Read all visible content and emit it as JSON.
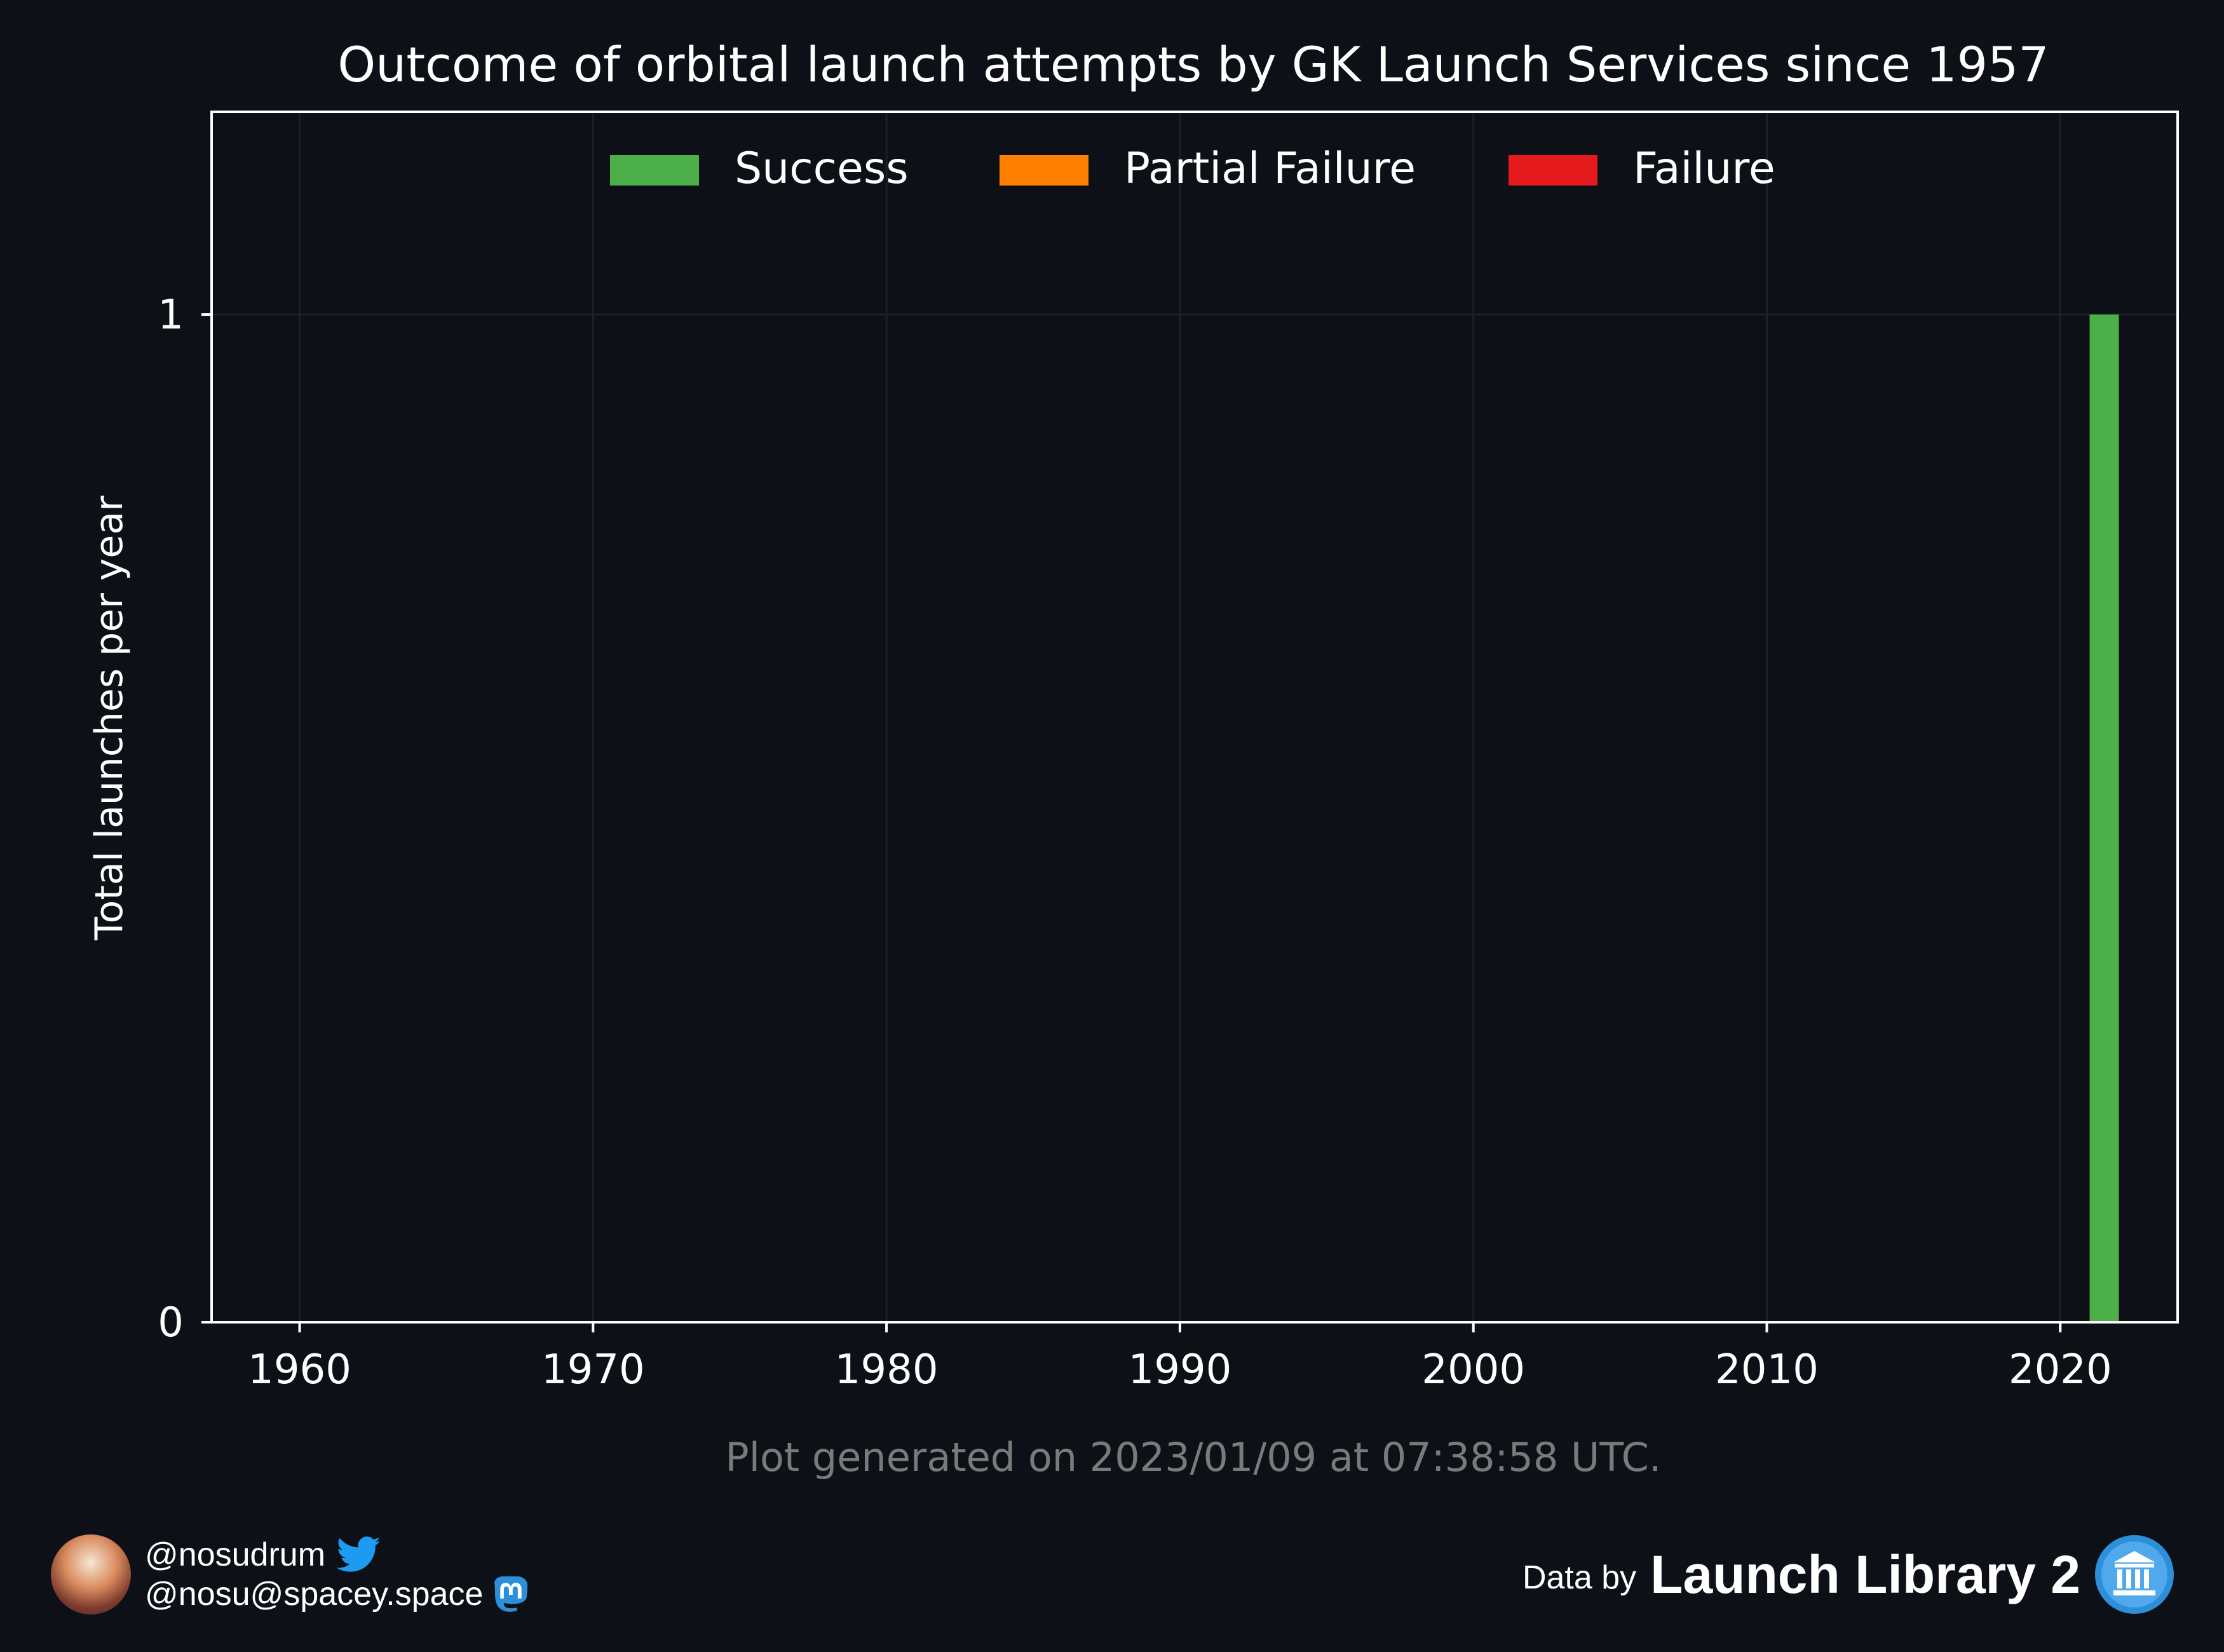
{
  "chart_data": {
    "type": "bar",
    "title": "Outcome of orbital launch attempts by GK Launch Services since 1957",
    "ylabel": "Total launches per year",
    "xlabel": "",
    "xlim": [
      1957,
      2024
    ],
    "ylim": [
      0,
      1.2
    ],
    "x_ticks": [
      "1960",
      "1970",
      "1980",
      "1990",
      "2000",
      "2010",
      "2020"
    ],
    "x_tick_values": [
      1960,
      1970,
      1980,
      1990,
      2000,
      2010,
      2020
    ],
    "y_ticks": [
      "0",
      "1"
    ],
    "y_tick_values": [
      0,
      1
    ],
    "stacked": true,
    "legend_position": "top-center",
    "grid": true,
    "x": [
      2021
    ],
    "series": [
      {
        "name": "Success",
        "color": "#4daf4a",
        "values": [
          1
        ]
      },
      {
        "name": "Partial Failure",
        "color": "#ff7f00",
        "values": [
          0
        ]
      },
      {
        "name": "Failure",
        "color": "#e41a1c",
        "values": [
          0
        ]
      }
    ]
  },
  "footnote": "Plot generated on 2023/01/09 at 07:38:58 UTC.",
  "footer": {
    "twitter_handle": "@nosudrum",
    "mastodon_handle": "@nosu@spacey.space",
    "data_by": "Data by",
    "source_name": "Launch Library 2"
  },
  "colors": {
    "background": "#0d1017",
    "axes": "#ffffff",
    "grid": "#1c2029",
    "footnote": "#7a7a7a",
    "twitter": "#1d9bf0",
    "mastodon": "#2b90d9"
  },
  "icons": {
    "avatar": "astronaut-avatar",
    "twitter": "twitter-bird-icon",
    "mastodon": "mastodon-icon",
    "source_logo": "library-building-icon"
  }
}
